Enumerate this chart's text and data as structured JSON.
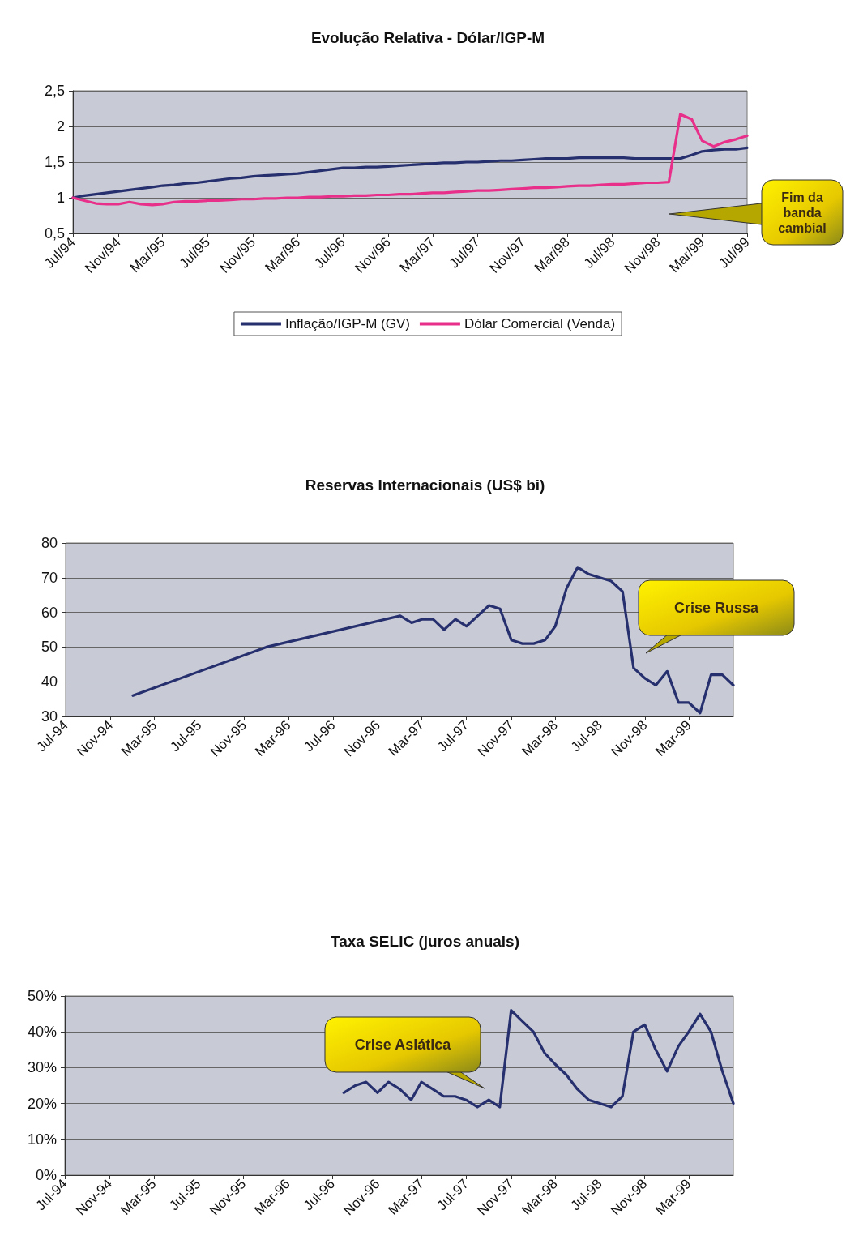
{
  "chart_data": [
    {
      "type": "line",
      "title": "Evolução Relativa - Dólar/IGP-M",
      "x": [
        "1994-07",
        "1994-08",
        "1994-09",
        "1994-10",
        "1994-11",
        "1994-12",
        "1995-01",
        "1995-02",
        "1995-03",
        "1995-04",
        "1995-05",
        "1995-06",
        "1995-07",
        "1995-08",
        "1995-09",
        "1995-10",
        "1995-11",
        "1995-12",
        "1996-01",
        "1996-02",
        "1996-03",
        "1996-04",
        "1996-05",
        "1996-06",
        "1996-07",
        "1996-08",
        "1996-09",
        "1996-10",
        "1996-11",
        "1996-12",
        "1997-01",
        "1997-02",
        "1997-03",
        "1997-04",
        "1997-05",
        "1997-06",
        "1997-07",
        "1997-08",
        "1997-09",
        "1997-10",
        "1997-11",
        "1997-12",
        "1998-01",
        "1998-02",
        "1998-03",
        "1998-04",
        "1998-05",
        "1998-06",
        "1998-07",
        "1998-08",
        "1998-09",
        "1998-10",
        "1998-11",
        "1998-12",
        "1999-01",
        "1999-02",
        "1999-03",
        "1999-04",
        "1999-05",
        "1999-06",
        "1999-07"
      ],
      "series": [
        {
          "name": "Inflação/IGP-M (GV)",
          "color": "#27306e",
          "values": [
            1.0,
            1.03,
            1.05,
            1.07,
            1.09,
            1.11,
            1.13,
            1.15,
            1.17,
            1.18,
            1.2,
            1.21,
            1.23,
            1.25,
            1.27,
            1.28,
            1.3,
            1.31,
            1.32,
            1.33,
            1.34,
            1.36,
            1.38,
            1.4,
            1.42,
            1.42,
            1.43,
            1.43,
            1.44,
            1.45,
            1.46,
            1.47,
            1.48,
            1.49,
            1.49,
            1.5,
            1.5,
            1.51,
            1.52,
            1.52,
            1.53,
            1.54,
            1.55,
            1.55,
            1.55,
            1.56,
            1.56,
            1.56,
            1.56,
            1.56,
            1.55,
            1.55,
            1.55,
            1.55,
            1.55,
            1.6,
            1.65,
            1.67,
            1.68,
            1.68,
            1.7
          ]
        },
        {
          "name": "Dólar Comercial (Venda)",
          "color": "#e8308a",
          "values": [
            1.0,
            0.96,
            0.92,
            0.91,
            0.91,
            0.94,
            0.91,
            0.9,
            0.91,
            0.94,
            0.95,
            0.95,
            0.96,
            0.96,
            0.97,
            0.98,
            0.98,
            0.99,
            0.99,
            1.0,
            1.0,
            1.01,
            1.01,
            1.02,
            1.02,
            1.03,
            1.03,
            1.04,
            1.04,
            1.05,
            1.05,
            1.06,
            1.07,
            1.07,
            1.08,
            1.09,
            1.1,
            1.1,
            1.11,
            1.12,
            1.13,
            1.14,
            1.14,
            1.15,
            1.16,
            1.17,
            1.17,
            1.18,
            1.19,
            1.19,
            1.2,
            1.21,
            1.21,
            1.22,
            2.17,
            2.1,
            1.8,
            1.72,
            1.78,
            1.82,
            1.87
          ]
        }
      ],
      "xlim": [
        "1994-07",
        "1999-07"
      ],
      "xticks": [
        {
          "value": "1994-07",
          "label": "Jul/94"
        },
        {
          "value": "1994-11",
          "label": "Nov/94"
        },
        {
          "value": "1995-03",
          "label": "Mar/95"
        },
        {
          "value": "1995-07",
          "label": "Jul/95"
        },
        {
          "value": "1995-11",
          "label": "Nov/95"
        },
        {
          "value": "1996-03",
          "label": "Mar/96"
        },
        {
          "value": "1996-07",
          "label": "Jul/96"
        },
        {
          "value": "1996-11",
          "label": "Nov/96"
        },
        {
          "value": "1997-03",
          "label": "Mar/97"
        },
        {
          "value": "1997-07",
          "label": "Jul/97"
        },
        {
          "value": "1997-11",
          "label": "Nov/97"
        },
        {
          "value": "1998-03",
          "label": "Mar/98"
        },
        {
          "value": "1998-07",
          "label": "Jul/98"
        },
        {
          "value": "1998-11",
          "label": "Nov/98"
        },
        {
          "value": "1999-03",
          "label": "Mar/99"
        },
        {
          "value": "1999-07",
          "label": "Jul/99"
        }
      ],
      "ylim": [
        0.5,
        2.5
      ],
      "yticks": [
        {
          "value": 0.5,
          "label": "0,5"
        },
        1,
        {
          "value": 1.5,
          "label": "1,5"
        },
        2,
        {
          "value": 2.5,
          "label": "2,5"
        }
      ],
      "annotations": [
        "Fim da banda cambial"
      ],
      "grid": "y",
      "legend": "bottom",
      "marker": "none"
    },
    {
      "type": "line",
      "title": "Reservas Internacionais (US$ bi)",
      "x": [
        "1995-01",
        "1996-01",
        "1997-01",
        "1997-02",
        "1997-03",
        "1997-04",
        "1997-05",
        "1997-06",
        "1997-07",
        "1997-08",
        "1997-09",
        "1997-10",
        "1997-11",
        "1997-12",
        "1998-01",
        "1998-02",
        "1998-03",
        "1998-04",
        "1998-05",
        "1998-06",
        "1998-07",
        "1998-08",
        "1998-09",
        "1998-10",
        "1998-11",
        "1998-12",
        "1999-01",
        "1999-02",
        "1999-03",
        "1999-04",
        "1999-05",
        "1999-06",
        "1999-07"
      ],
      "series": [
        {
          "color": "#27306e",
          "values": [
            36,
            50,
            59,
            57,
            58,
            58,
            55,
            58,
            56,
            59,
            62,
            61,
            52,
            51,
            51,
            52,
            56,
            67,
            73,
            71,
            70,
            69,
            66,
            44,
            41,
            39,
            43,
            34,
            34,
            31,
            42,
            42,
            39
          ]
        }
      ],
      "xlim": [
        "1994-07",
        "1999-07"
      ],
      "xticks": [
        {
          "value": "1994-07",
          "label": "Jul-94"
        },
        {
          "value": "1994-11",
          "label": "Nov-94"
        },
        {
          "value": "1995-03",
          "label": "Mar-95"
        },
        {
          "value": "1995-07",
          "label": "Jul-95"
        },
        {
          "value": "1995-11",
          "label": "Nov-95"
        },
        {
          "value": "1996-03",
          "label": "Mar-96"
        },
        {
          "value": "1996-07",
          "label": "Jul-96"
        },
        {
          "value": "1996-11",
          "label": "Nov-96"
        },
        {
          "value": "1997-03",
          "label": "Mar-97"
        },
        {
          "value": "1997-07",
          "label": "Jul-97"
        },
        {
          "value": "1997-11",
          "label": "Nov-97"
        },
        {
          "value": "1998-03",
          "label": "Mar-98"
        },
        {
          "value": "1998-07",
          "label": "Jul-98"
        },
        {
          "value": "1998-11",
          "label": "Nov-98"
        },
        {
          "value": "1999-03",
          "label": "Mar-99"
        }
      ],
      "ylim": [
        30,
        80
      ],
      "yticks": [
        30,
        40,
        50,
        60,
        70,
        80
      ],
      "annotations": [
        "Crise Russa"
      ],
      "grid": "y",
      "marker": "none"
    },
    {
      "type": "line",
      "title": "Taxa SELIC (juros anuais)",
      "x": [
        "1996-08",
        "1996-09",
        "1996-10",
        "1996-11",
        "1996-12",
        "1997-01",
        "1997-02",
        "1997-03",
        "1997-04",
        "1997-05",
        "1997-06",
        "1997-07",
        "1997-08",
        "1997-09",
        "1997-10",
        "1997-11",
        "1997-12",
        "1998-01",
        "1998-02",
        "1998-03",
        "1998-04",
        "1998-05",
        "1998-06",
        "1998-07",
        "1998-08",
        "1998-09",
        "1998-10",
        "1998-11",
        "1998-12",
        "1999-01",
        "1999-02",
        "1999-03",
        "1999-04",
        "1999-05",
        "1999-06",
        "1999-07"
      ],
      "series": [
        {
          "color": "#27306e",
          "values": [
            23,
            25,
            26,
            23,
            26,
            24,
            21,
            26,
            24,
            22,
            22,
            21,
            19,
            21,
            19,
            46,
            43,
            40,
            34,
            31,
            28,
            24,
            21,
            20,
            19,
            22,
            40,
            42,
            35,
            29,
            36,
            40,
            45,
            40,
            29,
            20
          ]
        }
      ],
      "xlim": [
        "1994-07",
        "1999-07"
      ],
      "xticks": [
        {
          "value": "1994-07",
          "label": "Jul-94"
        },
        {
          "value": "1994-11",
          "label": "Nov-94"
        },
        {
          "value": "1995-03",
          "label": "Mar-95"
        },
        {
          "value": "1995-07",
          "label": "Jul-95"
        },
        {
          "value": "1995-11",
          "label": "Nov-95"
        },
        {
          "value": "1996-03",
          "label": "Mar-96"
        },
        {
          "value": "1996-07",
          "label": "Jul-96"
        },
        {
          "value": "1996-11",
          "label": "Nov-96"
        },
        {
          "value": "1997-03",
          "label": "Mar-97"
        },
        {
          "value": "1997-07",
          "label": "Jul-97"
        },
        {
          "value": "1997-11",
          "label": "Nov-97"
        },
        {
          "value": "1998-03",
          "label": "Mar-98"
        },
        {
          "value": "1998-07",
          "label": "Jul-98"
        },
        {
          "value": "1998-11",
          "label": "Nov-98"
        },
        {
          "value": "1999-03",
          "label": "Mar-99"
        }
      ],
      "ylim": [
        0,
        50
      ],
      "yticks": [
        {
          "value": 0,
          "label": "0%"
        },
        {
          "value": 10,
          "label": "10%"
        },
        {
          "value": 20,
          "label": "20%"
        },
        {
          "value": 30,
          "label": "30%"
        },
        {
          "value": 40,
          "label": "40%"
        },
        {
          "value": 50,
          "label": "50%"
        }
      ],
      "annotations": [
        "Crise Asiática"
      ],
      "grid": "y",
      "marker": "none"
    }
  ]
}
